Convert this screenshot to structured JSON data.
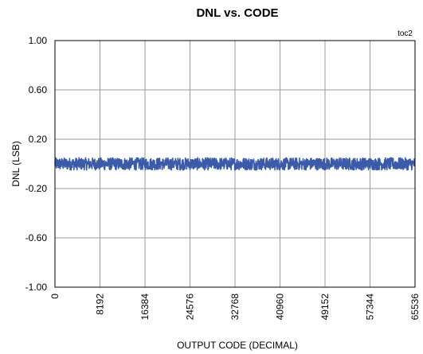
{
  "chart_data": {
    "type": "line",
    "title": "DNL vs. CODE",
    "tag": "toc2",
    "xlabel": "OUTPUT CODE (DECIMAL)",
    "ylabel": "DNL (LSB)",
    "xlim": [
      0,
      65536
    ],
    "ylim": [
      -1.0,
      1.0
    ],
    "x_ticks": [
      0,
      8192,
      16384,
      24576,
      32768,
      40960,
      49152,
      57344,
      65536
    ],
    "x_tick_labels": [
      "0",
      "8192",
      "16384",
      "24576",
      "32768",
      "40960",
      "49152",
      "57344",
      "65536"
    ],
    "y_ticks": [
      1.0,
      0.6,
      0.2,
      -0.2,
      -0.6,
      -1.0
    ],
    "y_tick_labels": [
      "1.00",
      "0.60",
      "0.20",
      "-0.20",
      "-0.60",
      "-1.00"
    ],
    "grid": true,
    "series": [
      {
        "color": "#3b5ba8",
        "band": {
          "x": [
            0,
            65536
          ],
          "center": 0.0,
          "min": -0.05,
          "max": 0.05
        }
      }
    ]
  }
}
